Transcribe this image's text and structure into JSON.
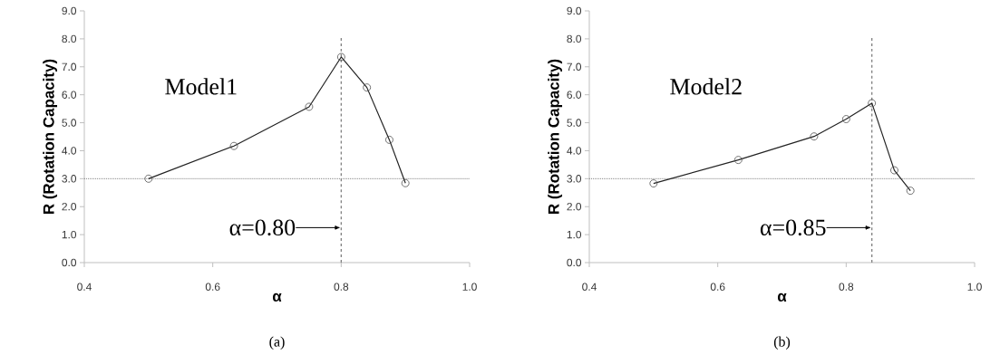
{
  "chart_data": [
    {
      "type": "line",
      "xlabel": "α",
      "ylabel": "R (Rotation Capacity)",
      "x": [
        0.5,
        0.633,
        0.75,
        0.8,
        0.84,
        0.875,
        0.9
      ],
      "series": [
        {
          "color": "#222222",
          "values": [
            3.0,
            4.17,
            5.57,
            7.35,
            6.26,
            4.39,
            2.84
          ]
        }
      ],
      "xlim": [
        0.4,
        1.0
      ],
      "ylim": [
        0,
        9
      ],
      "xticks": [
        0.4,
        0.6,
        0.8,
        {
          "value": 1.0,
          "label": "1.0"
        }
      ],
      "yticks": [
        {
          "value": 0,
          "label": "0.0"
        },
        {
          "value": 1,
          "label": "1.0"
        },
        {
          "value": 2,
          "label": "2.0"
        },
        {
          "value": 3,
          "label": "3.0"
        },
        {
          "value": 4,
          "label": "4.0"
        },
        {
          "value": 5,
          "label": "5.0"
        },
        {
          "value": 6,
          "label": "6.0"
        },
        {
          "value": 7,
          "label": "7.0"
        },
        {
          "value": 8,
          "label": "8.0"
        },
        {
          "value": 9,
          "label": "9.0"
        }
      ],
      "ref_lines": [
        {
          "axis": "y",
          "value": 3,
          "color": "#808080",
          "line_style": "dotted"
        },
        {
          "axis": "x",
          "value": 0.8,
          "color": "#808080",
          "line_style": "dashed"
        }
      ],
      "annotations": [
        "Model1",
        {
          "text": "α=0.80",
          "x": 0.8,
          "y": 1.25
        },
        "(a)"
      ],
      "marker": "circle",
      "line_style": "solid"
    },
    {
      "type": "line",
      "xlabel": "α",
      "ylabel": "R (Rotation Capacity)",
      "x": [
        0.5,
        0.632,
        0.75,
        0.8,
        0.84,
        0.875,
        0.9
      ],
      "series": [
        {
          "color": "#222222",
          "values": [
            2.83,
            3.67,
            4.51,
            5.13,
            5.7,
            3.3,
            2.57
          ]
        }
      ],
      "xlim": [
        0.4,
        1.0
      ],
      "ylim": [
        0,
        9
      ],
      "xticks": [
        0.4,
        0.6,
        0.8,
        {
          "value": 1.0,
          "label": "1.0"
        }
      ],
      "yticks": [
        {
          "value": 0,
          "label": "0.0"
        },
        {
          "value": 1,
          "label": "1.0"
        },
        {
          "value": 2,
          "label": "2.0"
        },
        {
          "value": 3,
          "label": "3.0"
        },
        {
          "value": 4,
          "label": "4.0"
        },
        {
          "value": 5,
          "label": "5.0"
        },
        {
          "value": 6,
          "label": "6.0"
        },
        {
          "value": 7,
          "label": "7.0"
        },
        {
          "value": 8,
          "label": "8.0"
        },
        {
          "value": 9,
          "label": "9.0"
        }
      ],
      "ref_lines": [
        {
          "axis": "y",
          "value": 3,
          "color": "#808080",
          "line_style": "dotted"
        },
        {
          "axis": "x",
          "value": 0.84,
          "color": "#808080",
          "line_style": "dashed"
        }
      ],
      "annotations": [
        "Model2",
        {
          "text": "α=0.85",
          "x": 0.84,
          "y": 1.25
        },
        "(b)"
      ],
      "marker": "circle",
      "line_style": "solid"
    }
  ]
}
